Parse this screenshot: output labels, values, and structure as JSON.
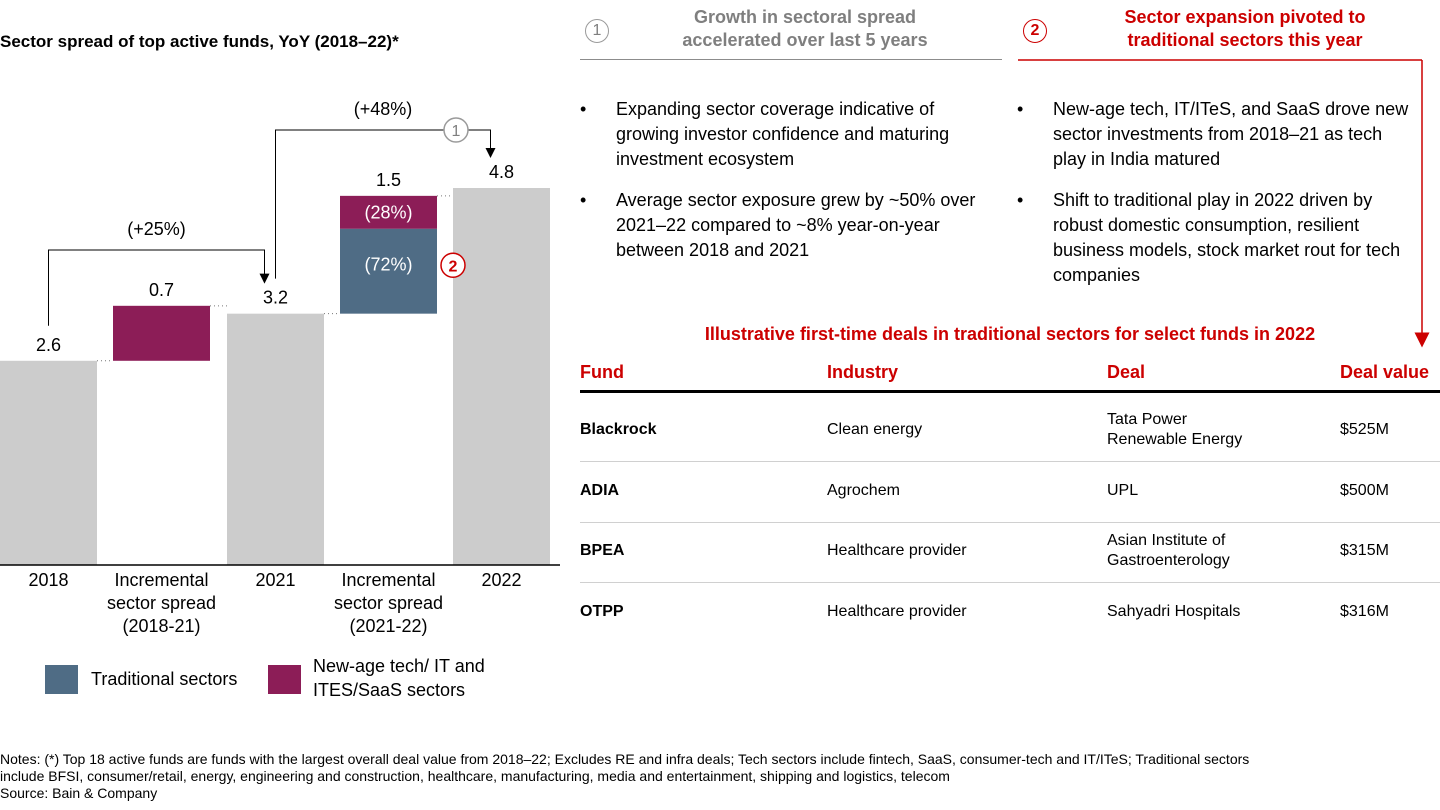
{
  "chart_data": {
    "type": "waterfall",
    "title": "Sector spread of top active funds, YoY (2018–22)*",
    "categories": [
      "2018",
      "Incremental sector spread (2018-21)",
      "2021",
      "Incremental sector spread (2021-22)",
      "2022"
    ],
    "category_labels": [
      {
        "lines": [
          "2018"
        ]
      },
      {
        "lines": [
          "Incremental",
          "sector spread",
          "(2018-21)"
        ]
      },
      {
        "lines": [
          "2021"
        ]
      },
      {
        "lines": [
          "Incremental",
          "sector spread",
          "(2021-22)"
        ]
      },
      {
        "lines": [
          "2022"
        ]
      }
    ],
    "totals": [
      {
        "category": "2018",
        "value": 2.6,
        "label": "2.6"
      },
      {
        "category": "2021",
        "value": 3.2,
        "label": "3.2"
      },
      {
        "category": "2022",
        "value": 4.8,
        "label": "4.8"
      }
    ],
    "increments": [
      {
        "category": "Incremental sector spread (2018-21)",
        "base": 2.6,
        "value": 0.7,
        "label": "0.7",
        "segments": [
          {
            "series": "New-age tech/ IT and ITES/SaaS sectors",
            "value": 0.7
          }
        ]
      },
      {
        "category": "Incremental sector spread (2021-22)",
        "base": 3.2,
        "value": 1.5,
        "label": "1.5",
        "segments": [
          {
            "series": "Traditional sectors",
            "share_label": "(72%)",
            "share": 0.72
          },
          {
            "series": "New-age tech/ IT and ITES/SaaS sectors",
            "share_label": "(28%)",
            "share": 0.28
          }
        ]
      }
    ],
    "growth_annotations": [
      {
        "from": "2018",
        "to": "2021",
        "label": "(+25%)"
      },
      {
        "from": "2021",
        "to": "2022",
        "label": "(+48%)",
        "marker": "1"
      }
    ],
    "series": [
      {
        "name": "Traditional sectors",
        "color": "#4f6c85"
      },
      {
        "name": "New-age tech/ IT and ITES/SaaS sectors",
        "color": "#8c1d57"
      }
    ],
    "total_color": "#cccccc",
    "marker_on_traditional": "2",
    "ylim": [
      0,
      5.2
    ],
    "legend_position": "bottom-left",
    "legend": [
      {
        "lines": [
          "Traditional sectors"
        ],
        "color": "#4f6c85"
      },
      {
        "lines": [
          "New-age tech/ IT and",
          "ITES/SaaS sectors"
        ],
        "color": "#8c1d57"
      }
    ]
  },
  "section1": {
    "number": "1",
    "header_line1": "Growth in sectoral spread",
    "header_line2": "accelerated over last 5 years",
    "bullets": [
      "Expanding sector coverage indicative of growing investor confidence and maturing investment ecosystem",
      "Average sector exposure grew by ~50% over 2021–22 compared to ~8% year-on-year between 2018 and 2021"
    ]
  },
  "section2": {
    "number": "2",
    "header_line1": "Sector expansion pivoted to",
    "header_line2": "traditional sectors this year",
    "bullets": [
      "New-age tech, IT/ITeS, and SaaS drove new sector investments from 2018–21 as tech play in India matured",
      "Shift to traditional play in 2022 driven by robust domestic consumption, resilient business models, stock market rout for tech companies"
    ]
  },
  "bullet_symbol": "•",
  "deals": {
    "title": "Illustrative first-time deals in traditional sectors for select funds in 2022",
    "headers": [
      "Fund",
      "Industry",
      "Deal",
      "Deal value"
    ],
    "rows": [
      {
        "fund": "Blackrock",
        "industry": "Clean energy",
        "deal_l1": "Tata Power",
        "deal_l2": "Renewable Energy",
        "value": "$525M"
      },
      {
        "fund": "ADIA",
        "industry": "Agrochem",
        "deal_l1": "UPL",
        "deal_l2": "",
        "value": "$500M"
      },
      {
        "fund": "BPEA",
        "industry": "Healthcare provider",
        "deal_l1": "Asian Institute of",
        "deal_l2": "Gastroenterology",
        "value": "$315M"
      },
      {
        "fund": "OTPP",
        "industry": "Healthcare provider",
        "deal_l1": "Sahyadri Hospitals",
        "deal_l2": "",
        "value": "$316M"
      }
    ]
  },
  "notes": {
    "line1": "Notes: (*) Top 18 active funds are funds with the largest overall deal value from 2018–22; Excludes RE and infra deals; Tech sectors include fintech, SaaS, consumer-tech and IT/ITeS; Traditional sectors",
    "line2": "include BFSI, consumer/retail, energy, engineering and construction, healthcare, manufacturing, media and entertainment, shipping and logistics, telecom",
    "source": "Source: Bain & Company"
  },
  "colors": {
    "accent_red": "#cc0000",
    "header_gray": "#7f7f7f",
    "rule_gray": "#8c8c8c"
  }
}
